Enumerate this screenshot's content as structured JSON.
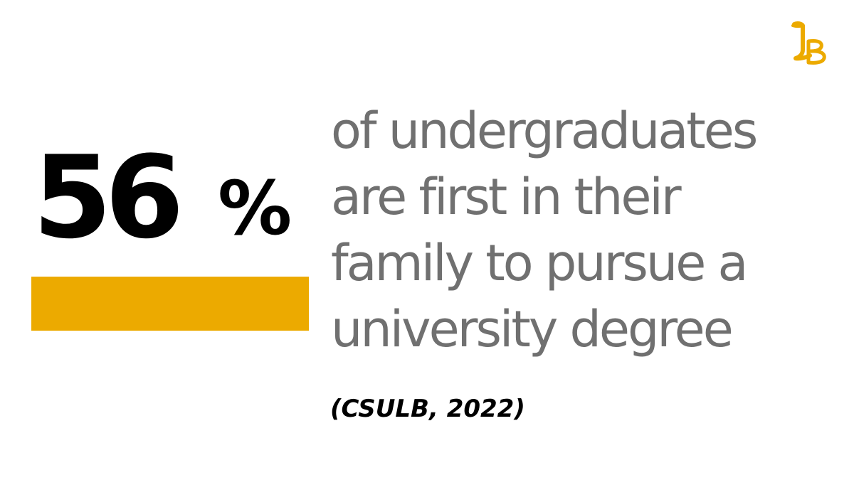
{
  "stat": {
    "number": "56",
    "percent_sign": "%"
  },
  "description": {
    "lines": [
      "of undergraduates",
      "are first in their",
      "family to pursue a",
      "university degree"
    ]
  },
  "citation": "(CSULB, 2022)",
  "logo": {
    "text": "LB",
    "icon": "lb-monogram-logo"
  },
  "colors": {
    "accent": "#ECAA00",
    "description_text": "#707070",
    "stat_text": "#000000",
    "background": "#ffffff"
  }
}
